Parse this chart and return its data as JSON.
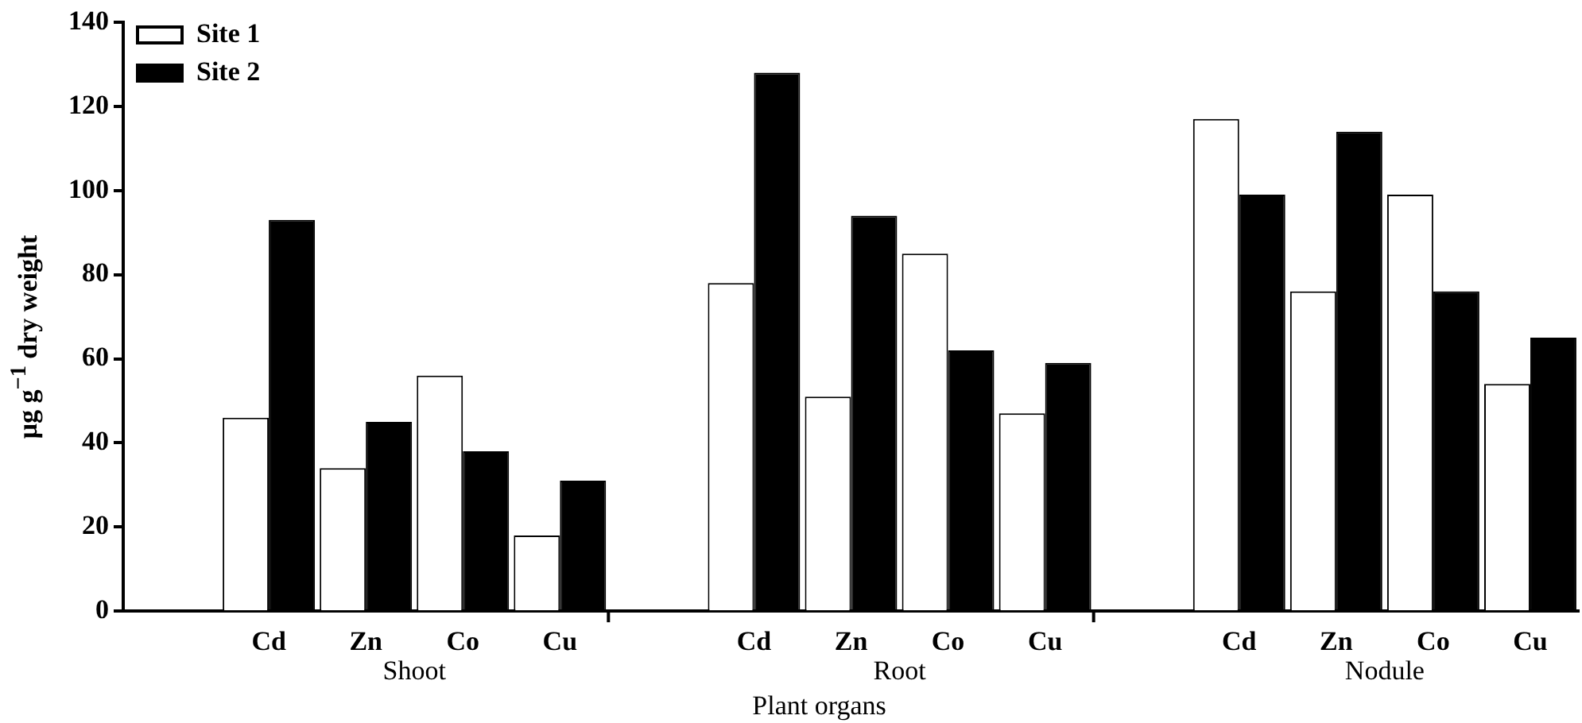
{
  "chart_data": {
    "type": "bar",
    "categories": [
      null,
      "Cd",
      "Zn",
      "Co",
      "Cu",
      null,
      "Cd",
      "Zn",
      "Co",
      "Cu",
      null,
      "Cd",
      "Zn",
      "Co",
      "Cu"
    ],
    "series": [
      {
        "name": "Site 1",
        "color": "#ffffff",
        "values": [
          null,
          46,
          34,
          56,
          18,
          null,
          78,
          51,
          85,
          47,
          null,
          117,
          76,
          99,
          54
        ]
      },
      {
        "name": "Site 2",
        "color": "#000000",
        "values": [
          null,
          93,
          45,
          38,
          31,
          null,
          128,
          94,
          62,
          59,
          null,
          99,
          114,
          76,
          65
        ]
      }
    ],
    "annotations": [
      "Shoot",
      "Root",
      "Nodule"
    ],
    "xlabel": "Plant organs",
    "ylabel": "μg g$^{−1}$ dry weight",
    "ylim": [
      0,
      140
    ],
    "yticks": [
      0,
      20,
      40,
      60,
      80,
      100,
      120,
      140
    ],
    "grid": false,
    "legend": "top left"
  }
}
